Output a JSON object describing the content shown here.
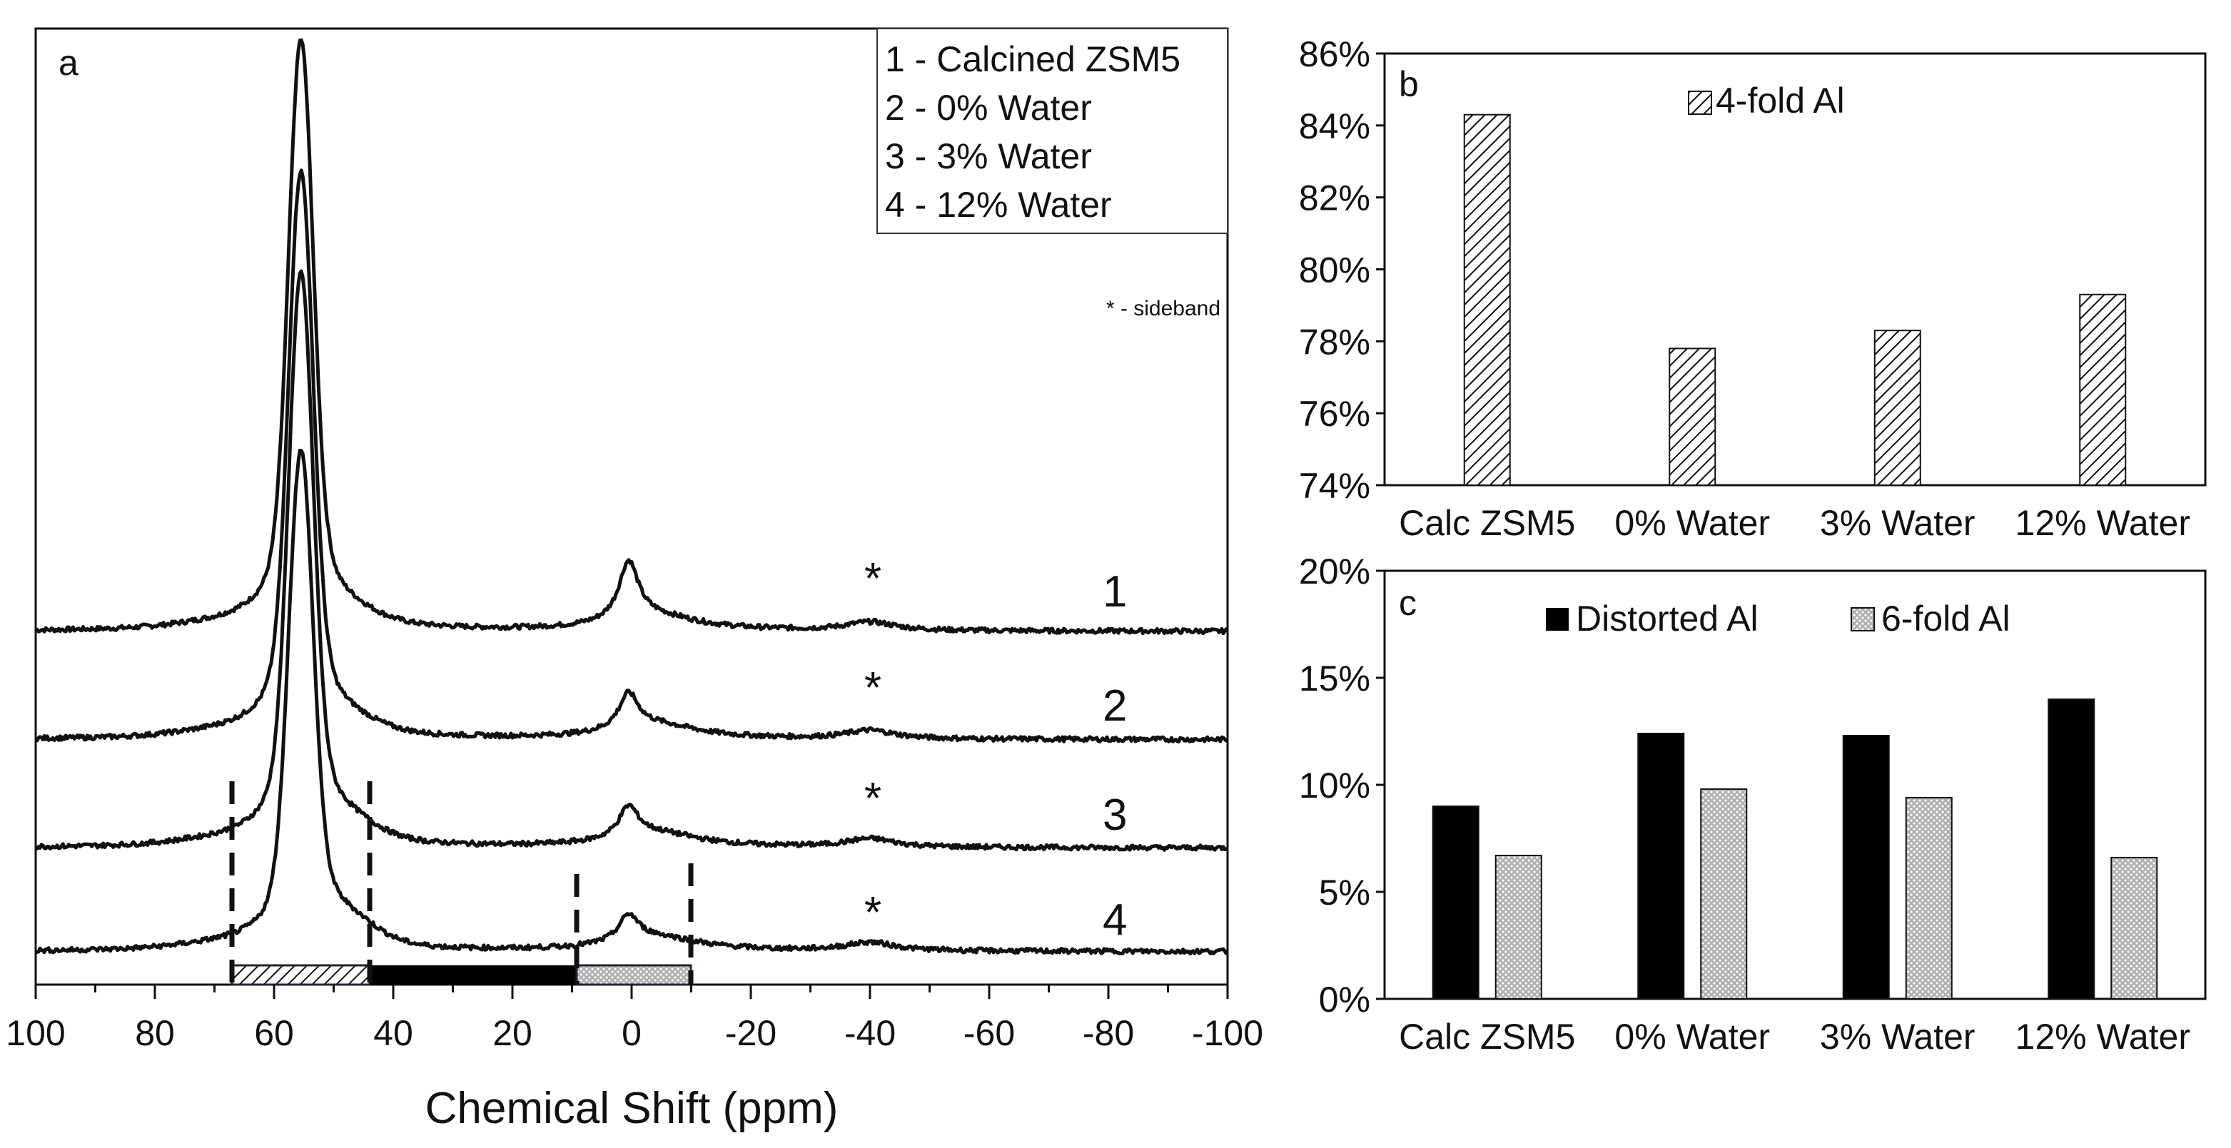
{
  "chart_data": [
    {
      "panel": "a",
      "type": "line",
      "title": "",
      "xlabel": "Chemical Shift (ppm)",
      "ylabel": "",
      "xlim": [
        100,
        -100
      ],
      "x_tick_labels": [
        "100",
        "80",
        "60",
        "40",
        "20",
        "0",
        "-20",
        "-40",
        "-60",
        "-80",
        "-100"
      ],
      "x_ticks": [
        100,
        80,
        60,
        40,
        20,
        0,
        -20,
        -40,
        -60,
        -80,
        -100
      ],
      "legend": [
        "1 - Calcined ZSM5",
        "2 - 0% Water",
        "3 - 3% Water",
        "4 - 12% Water"
      ],
      "legend_placement": "top-right",
      "annotation": "* - sideband",
      "sideband_marker": "*",
      "sideband_ppm": -40,
      "series": [
        {
          "name": "1",
          "label": "1",
          "offset": 0.75,
          "peak": 2.0,
          "dip": 0.78,
          "p0": 0.135
        },
        {
          "name": "2",
          "label": "2",
          "offset": 0.52,
          "peak": 1.72,
          "dip": 0.55,
          "p0": 0.085
        },
        {
          "name": "3",
          "label": "3",
          "offset": 0.29,
          "peak": 1.5,
          "dip": 0.34,
          "p0": 0.075
        },
        {
          "name": "4",
          "label": "4",
          "offset": 0.07,
          "peak": 1.12,
          "dip": 0.14,
          "p0": 0.065
        }
      ],
      "dashed_lines_ppm": [
        67,
        44,
        9,
        -10
      ],
      "region_bars": [
        {
          "from": 67,
          "to": 44,
          "fill": "hatched"
        },
        {
          "from": 44,
          "to": 9,
          "fill": "solid"
        },
        {
          "from": 9,
          "to": -10,
          "fill": "dotted"
        }
      ]
    },
    {
      "panel": "b",
      "type": "bar",
      "categories": [
        "Calc ZSM5",
        "0% Water",
        "3% Water",
        "12% Water"
      ],
      "series": [
        {
          "name": "4-fold Al",
          "values": [
            84.3,
            77.8,
            78.3,
            79.3
          ]
        }
      ],
      "ylim": [
        74,
        86
      ],
      "y_tick_values": [
        74,
        76,
        78,
        80,
        82,
        84,
        86
      ],
      "y_tick_labels": [
        "74%",
        "76%",
        "78%",
        "80%",
        "82%",
        "84%",
        "86%"
      ],
      "legend_placement": "top-center"
    },
    {
      "panel": "c",
      "type": "bar",
      "categories": [
        "Calc ZSM5",
        "0% Water",
        "3% Water",
        "12% Water"
      ],
      "series": [
        {
          "name": "Distorted Al",
          "values": [
            9.0,
            12.4,
            12.3,
            14.0
          ]
        },
        {
          "name": "6-fold Al",
          "values": [
            6.7,
            9.8,
            9.4,
            6.6
          ]
        }
      ],
      "ylim": [
        0,
        20
      ],
      "y_tick_values": [
        0,
        5,
        10,
        15,
        20
      ],
      "y_tick_labels": [
        "0%",
        "5%",
        "10%",
        "15%",
        "20%"
      ],
      "legend_placement": "top"
    }
  ],
  "colors": {
    "ink": "#111111",
    "solid_bar": "#000000",
    "dotted_bar": "#a8a8a8",
    "hatch_bar": "#ffffff",
    "background": "#ffffff"
  }
}
